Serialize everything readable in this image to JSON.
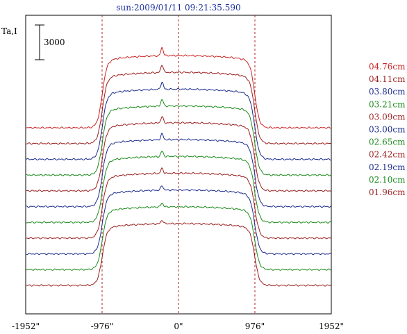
{
  "chart_data": {
    "type": "line",
    "title": "sun:2009/01/11 09:21:35.590",
    "ylabel": "Ta,I",
    "scale_bar_label": "3000",
    "x_ticks": [
      "-1952\"",
      "-976\"",
      "0\"",
      "976\"",
      "1952\""
    ],
    "x_tick_values": [
      -1952,
      -976,
      0,
      976,
      1952
    ],
    "xlim": [
      -1952,
      1952
    ],
    "reference_lines_x": [
      -976,
      0,
      976
    ],
    "scale_bar_value": 3000,
    "series": [
      {
        "name": "04.76cm",
        "color": "#cc2222"
      },
      {
        "name": "04.11cm",
        "color": "#9a1e1e"
      },
      {
        "name": "03.80cm",
        "color": "#1a2a8c"
      },
      {
        "name": "03.21cm",
        "color": "#1a8a1a"
      },
      {
        "name": "03.09cm",
        "color": "#9a1e1e"
      },
      {
        "name": "03.00cm",
        "color": "#1a2a8c"
      },
      {
        "name": "02.65cm",
        "color": "#1a8a1a"
      },
      {
        "name": "02.42cm",
        "color": "#9a1e1e"
      },
      {
        "name": "02.19cm",
        "color": "#1a2a8c"
      },
      {
        "name": "02.10cm",
        "color": "#1a8a1a"
      },
      {
        "name": "01.96cm",
        "color": "#9a1e1e"
      }
    ],
    "grid": false
  }
}
